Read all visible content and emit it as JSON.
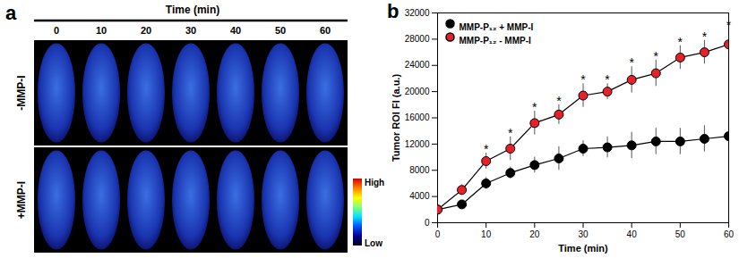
{
  "image_panel": {
    "label": "a",
    "title": "Time (min)",
    "times": [
      "0",
      "10",
      "20",
      "30",
      "40",
      "50",
      "60"
    ],
    "rows": [
      "-MMP-I",
      "+MMP-I"
    ],
    "colorbar": {
      "high": "High",
      "low": "Low"
    }
  },
  "chart_data": {
    "type": "line",
    "panel_label": "b",
    "x_label": "Time (min)",
    "y_label": "Tumor ROI FI (a.u.)",
    "x": [
      0,
      5,
      10,
      15,
      20,
      25,
      30,
      35,
      40,
      45,
      50,
      55,
      60
    ],
    "xlim": [
      0,
      60
    ],
    "xticks": [
      0,
      10,
      20,
      30,
      40,
      50,
      60
    ],
    "ylim": [
      0,
      32000
    ],
    "yticks": [
      0,
      4000,
      8000,
      12000,
      16000,
      20000,
      24000,
      28000,
      32000
    ],
    "legend": "top-left",
    "series": [
      {
        "name": "MMP-P₁₂ + MMP-I",
        "color": "#000000",
        "marker": "circle",
        "values": [
          2000,
          2800,
          6000,
          7600,
          8800,
          9800,
          11300,
          11500,
          11800,
          12400,
          12400,
          12800,
          13200
        ],
        "errors": [
          200,
          500,
          900,
          900,
          1200,
          1800,
          1200,
          1600,
          2000,
          2000,
          2000,
          2000,
          1900
        ]
      },
      {
        "name": "MMP-P₁₂ - MMP-I",
        "color": "#e8202a",
        "marker": "circle",
        "values": [
          2000,
          5000,
          9400,
          11300,
          15200,
          16500,
          19400,
          20000,
          21800,
          22800,
          25200,
          26000,
          27200
        ],
        "errors": [
          200,
          800,
          1200,
          1800,
          1800,
          1500,
          1800,
          1200,
          2000,
          2000,
          1800,
          1800,
          2400
        ]
      }
    ],
    "annotations": {
      "text": "*",
      "series": "MMP-P₁₂ - MMP-I",
      "x": [
        10,
        15,
        20,
        25,
        30,
        35,
        40,
        45,
        50,
        55,
        60
      ]
    }
  }
}
